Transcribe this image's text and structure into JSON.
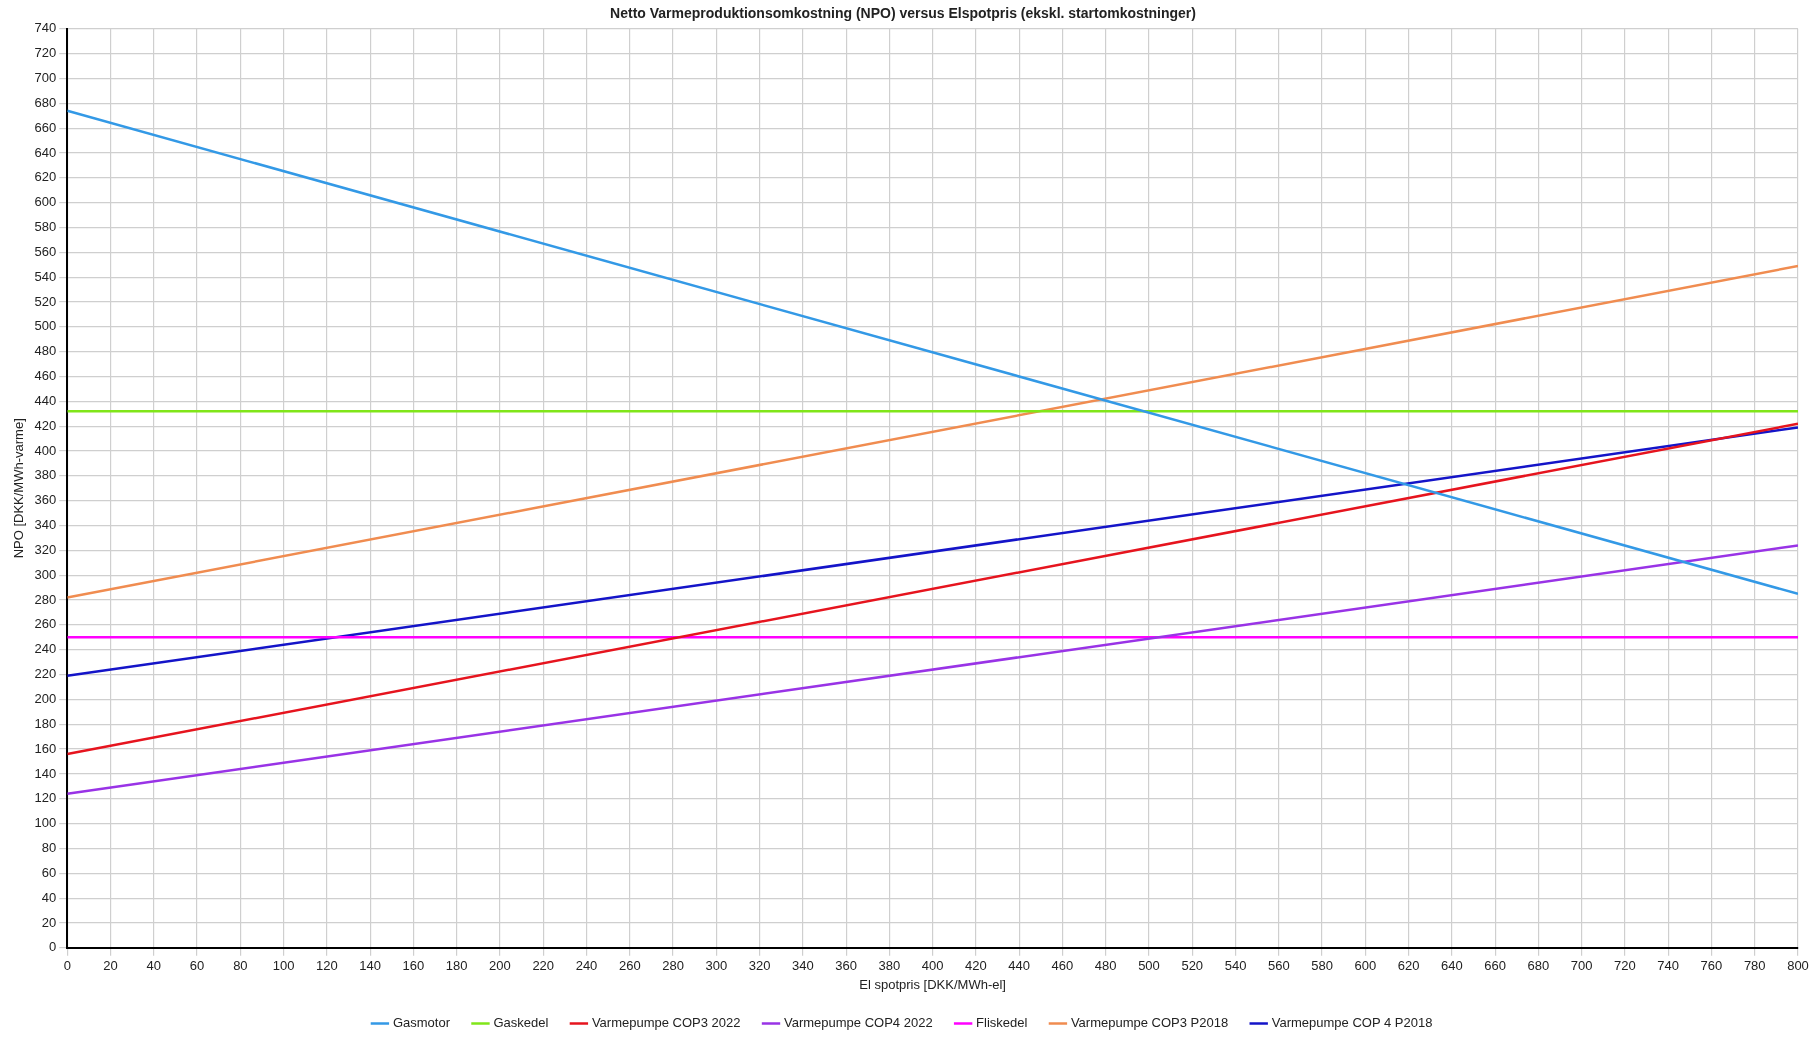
{
  "chart_data": {
    "type": "line",
    "title": "Netto Varmeproduktionsomkostning (NPO) versus Elspotpris (ekskl. startomkostninger)",
    "xlabel": "El spotpris [DKK/MWh-el]",
    "ylabel": "NPO [DKK/MWh-varme]",
    "x": [
      0,
      800
    ],
    "series": [
      {
        "name": "Gasmotor",
        "color": "#3399e6",
        "values": [
          674,
          285
        ]
      },
      {
        "name": "Gaskedel",
        "color": "#80e619",
        "values": [
          432,
          432
        ]
      },
      {
        "name": "Varmepumpe COP3 2022",
        "color": "#e6141e",
        "values": [
          156,
          422
        ]
      },
      {
        "name": "Varmepumpe COP4 2022",
        "color": "#9933e6",
        "values": [
          124,
          324
        ]
      },
      {
        "name": "Fliskedel",
        "color": "#ff00ff",
        "values": [
          250,
          250
        ]
      },
      {
        "name": "Varmepumpe COP3 P2018",
        "color": "#f08c50",
        "values": [
          282,
          549
        ]
      },
      {
        "name": "Varmepumpe COP 4 P2018",
        "color": "#1414c8",
        "values": [
          219,
          419
        ]
      }
    ],
    "xlim": [
      0,
      800
    ],
    "xticks": [
      0,
      20,
      40,
      60,
      80,
      100,
      120,
      140,
      160,
      180,
      200,
      220,
      240,
      260,
      280,
      300,
      320,
      340,
      360,
      380,
      400,
      420,
      440,
      460,
      480,
      500,
      520,
      540,
      560,
      580,
      600,
      620,
      640,
      660,
      680,
      700,
      720,
      740,
      760,
      780,
      800
    ],
    "ylim": [
      0,
      740
    ],
    "yticks": [
      0,
      20,
      40,
      60,
      80,
      100,
      120,
      140,
      160,
      180,
      200,
      220,
      240,
      260,
      280,
      300,
      320,
      340,
      360,
      380,
      400,
      420,
      440,
      460,
      480,
      500,
      520,
      540,
      560,
      580,
      600,
      620,
      640,
      660,
      680,
      700,
      720,
      740
    ],
    "grid": true,
    "legend": "bottom",
    "marker": "none",
    "line_style": "solid"
  }
}
